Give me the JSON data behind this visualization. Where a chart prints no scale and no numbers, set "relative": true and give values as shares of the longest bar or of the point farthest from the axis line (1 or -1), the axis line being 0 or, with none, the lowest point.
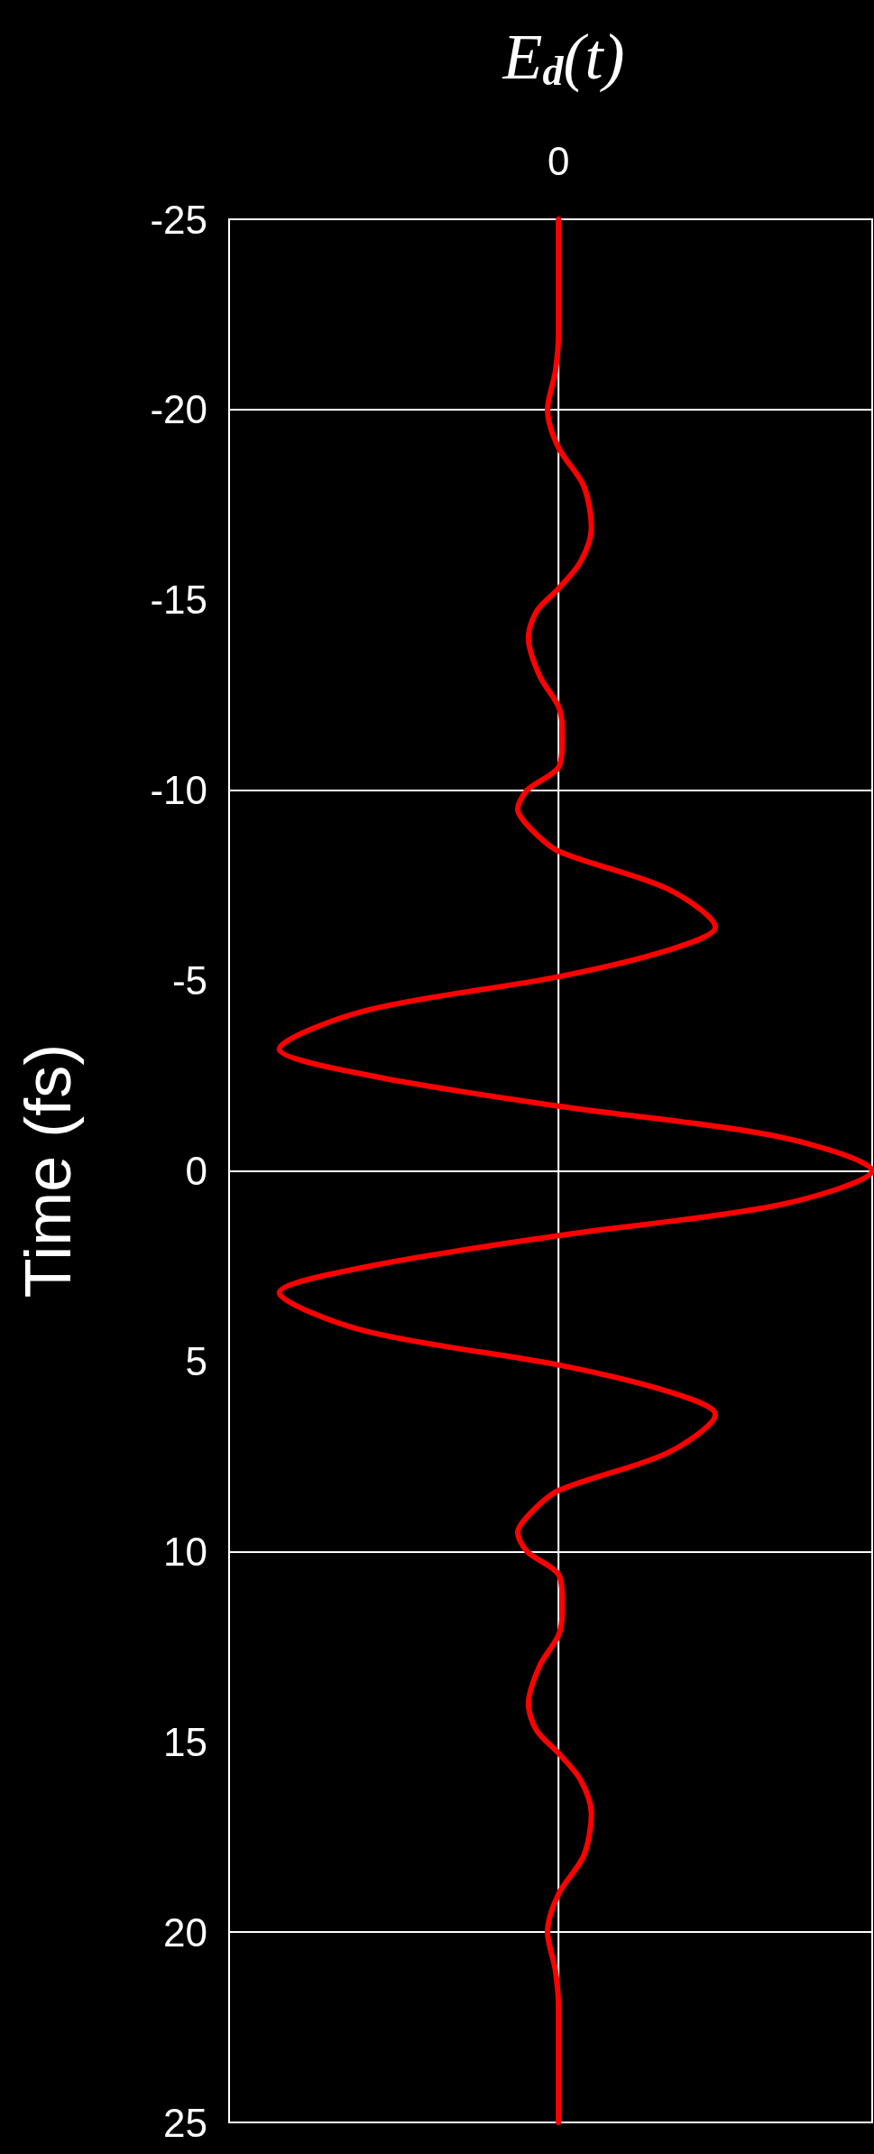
{
  "chart_data": {
    "type": "line",
    "orientation": "horizontal",
    "relative": true,
    "xlabel": "E$_{d}$(t)",
    "ylabel": "Time (fs)",
    "annotations": [
      "0"
    ],
    "x": [
      -25,
      -22,
      -21,
      -20,
      -19,
      -18,
      -16.9,
      -16,
      -15.3,
      -14.7,
      -14,
      -13,
      -12.2,
      -11.6,
      -11.3,
      -10.6,
      -10,
      -9.5,
      -9,
      -8.4,
      -7.4,
      -6.4,
      -5.8,
      -5.1,
      -4.2,
      -3.2,
      -2.5,
      -1.7,
      -0.9,
      0,
      0.9,
      1.7,
      2.5,
      3.2,
      4.2,
      5.1,
      5.8,
      6.4,
      7.4,
      8.4,
      9,
      9.5,
      10,
      10.6,
      11.3,
      11.6,
      12.2,
      13,
      14,
      14.7,
      15.3,
      16,
      16.9,
      18,
      19,
      20,
      21,
      22,
      25
    ],
    "series": [
      {
        "color": "#ff0000",
        "values": [
          0,
          0,
          -0.01,
          -0.035,
          0,
          0.08,
          0.105,
          0.07,
          0,
          -0.07,
          -0.096,
          -0.06,
          0,
          0.012,
          0.012,
          0,
          -0.1,
          -0.13,
          -0.09,
          0,
          0.35,
          0.5,
          0.35,
          0,
          -0.62,
          -0.89,
          -0.6,
          0,
          0.7,
          1,
          0.7,
          0,
          -0.6,
          -0.89,
          -0.62,
          0,
          0.35,
          0.5,
          0.35,
          0,
          -0.09,
          -0.13,
          -0.1,
          0,
          0.012,
          0.012,
          0,
          -0.06,
          -0.096,
          -0.07,
          0,
          0.07,
          0.105,
          0.08,
          0,
          -0.035,
          -0.01,
          0,
          0
        ]
      }
    ],
    "ylim": [
      25,
      -25
    ],
    "yticks": [
      -25,
      -20,
      -15,
      -10,
      -5,
      0,
      5,
      10,
      15,
      20,
      25
    ],
    "grid": "y",
    "marker": "none",
    "line_style": "solid"
  }
}
